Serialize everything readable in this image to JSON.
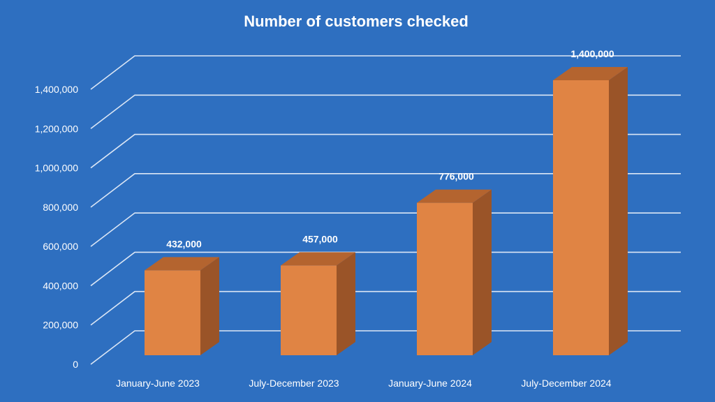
{
  "chart_data": {
    "type": "bar",
    "title": "Number of customers checked",
    "categories": [
      "January-June 2023",
      "July-December 2023",
      "January-June 2024",
      "July-December 2024"
    ],
    "values": [
      432000,
      457000,
      776000,
      1400000
    ],
    "data_labels": [
      "432,000",
      "457,000",
      "776,000",
      "1,400,000"
    ],
    "y_ticks": [
      0,
      200000,
      400000,
      600000,
      800000,
      1000000,
      1200000,
      1400000
    ],
    "y_tick_labels": [
      "0",
      "200,000",
      "400,000",
      "600,000",
      "800,000",
      "1,000,000",
      "1,200,000",
      "1,400,000"
    ],
    "ylim": [
      0,
      1400000
    ],
    "xlabel": "",
    "ylabel": "",
    "grid": true,
    "legend": "none",
    "style": "3d-column"
  },
  "colors": {
    "background": "#2e6fc0",
    "bar_front": "#e08444",
    "bar_side": "#9a5428",
    "bar_top": "#b4642f",
    "text": "#ffffff"
  }
}
